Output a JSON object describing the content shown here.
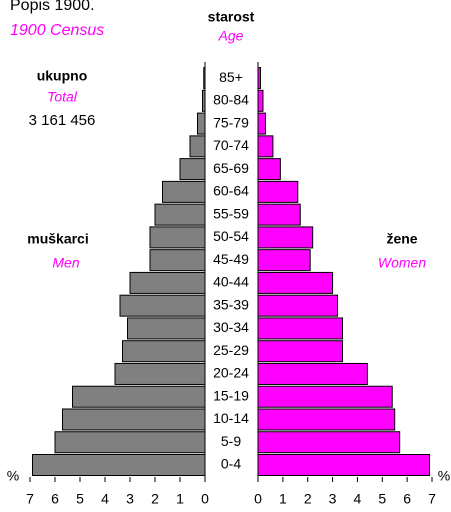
{
  "chart_data": {
    "type": "pyramid",
    "title": "Popis 1900.",
    "subtitle": "1900 Census",
    "axis_label": "starost",
    "axis_label_en": "Age",
    "total_label": "ukupno",
    "total_label_en": "Total",
    "total": "3 161 456",
    "unit": "%",
    "categories": [
      "0-4",
      "5-9",
      "10-14",
      "15-19",
      "20-24",
      "25-29",
      "30-34",
      "35-39",
      "40-44",
      "45-49",
      "50-54",
      "55-59",
      "60-64",
      "65-69",
      "70-74",
      "75-79",
      "80-84",
      "85+"
    ],
    "series": [
      {
        "name": "muškarci",
        "name_en": "Men",
        "color": "#808080",
        "side": "left",
        "values": [
          6.9,
          6.0,
          5.7,
          5.3,
          3.6,
          3.3,
          3.1,
          3.4,
          3.0,
          2.2,
          2.2,
          2.0,
          1.7,
          1.0,
          0.6,
          0.3,
          0.1,
          0.05
        ]
      },
      {
        "name": "žene",
        "name_en": "Women",
        "color": "#ff00ff",
        "side": "right",
        "values": [
          6.9,
          5.7,
          5.5,
          5.4,
          4.4,
          3.4,
          3.4,
          3.2,
          3.0,
          2.1,
          2.2,
          1.7,
          1.6,
          0.9,
          0.6,
          0.3,
          0.2,
          0.1
        ]
      }
    ],
    "xlim": [
      0,
      7
    ],
    "xticks": [
      0,
      1,
      2,
      3,
      4,
      5,
      6,
      7
    ]
  }
}
